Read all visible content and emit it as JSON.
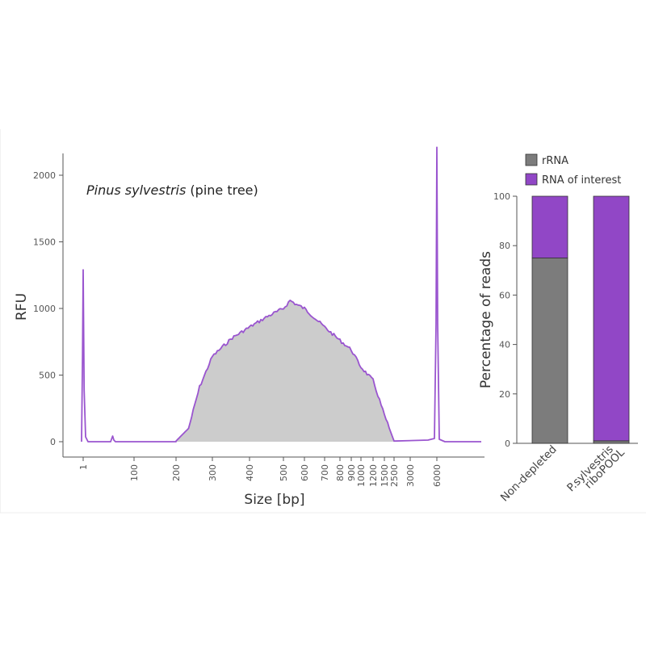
{
  "chart_data": [
    {
      "type": "area",
      "title_italic": "Pinus sylvestris",
      "title_rest": " (pine tree)",
      "xlabel": "Size [bp]",
      "ylabel": "RFU",
      "x_scale": "log",
      "ylim": [
        0,
        2200
      ],
      "y_ticks": [
        0,
        500,
        1000,
        1500,
        2000
      ],
      "x_ticks": [
        "1",
        "100",
        "200",
        "300",
        "400",
        "500",
        "600",
        "700",
        "800",
        "900",
        "1000",
        "1200",
        "1500",
        "2500",
        "3000",
        "6000"
      ],
      "grid": false,
      "line_color": "#9a55cf",
      "fill_color": "#cccccc",
      "peaks": [
        {
          "x": "1",
          "rfu": 1290
        },
        {
          "x": "6000",
          "rfu": 2210
        }
      ],
      "series": [
        {
          "values": [
            {
              "x": 200,
              "rfu": 5
            },
            {
              "x": 230,
              "rfu": 100
            },
            {
              "x": 260,
              "rfu": 410
            },
            {
              "x": 300,
              "rfu": 640
            },
            {
              "x": 350,
              "rfu": 780
            },
            {
              "x": 400,
              "rfu": 860
            },
            {
              "x": 450,
              "rfu": 940
            },
            {
              "x": 500,
              "rfu": 1000
            },
            {
              "x": 530,
              "rfu": 1060
            },
            {
              "x": 560,
              "rfu": 1030
            },
            {
              "x": 600,
              "rfu": 1000
            },
            {
              "x": 700,
              "rfu": 860
            },
            {
              "x": 800,
              "rfu": 760
            },
            {
              "x": 900,
              "rfu": 690
            },
            {
              "x": 1000,
              "rfu": 560
            },
            {
              "x": 1200,
              "rfu": 460
            },
            {
              "x": 1500,
              "rfu": 200
            },
            {
              "x": 2500,
              "rfu": 5
            }
          ]
        }
      ]
    },
    {
      "type": "bar",
      "stacked": true,
      "ylabel": "Percentage of reads",
      "ylim": [
        0,
        100
      ],
      "y_ticks": [
        0,
        20,
        40,
        60,
        80,
        100
      ],
      "categories": [
        {
          "label": "Non-depleted"
        },
        {
          "label_line1": "P.sylvestris",
          "label_line2": "riboPOOL"
        }
      ],
      "legend_placement": "top",
      "legend": [
        {
          "label": "rRNA",
          "color": "#7c7c7c"
        },
        {
          "label": "RNA of interest",
          "color": "#9147c6"
        }
      ],
      "series": [
        {
          "name": "rRNA",
          "color": "#7c7c7c",
          "values": [
            75,
            1
          ]
        },
        {
          "name": "RNA of interest",
          "color": "#9147c6",
          "values": [
            25,
            99
          ]
        }
      ]
    }
  ]
}
